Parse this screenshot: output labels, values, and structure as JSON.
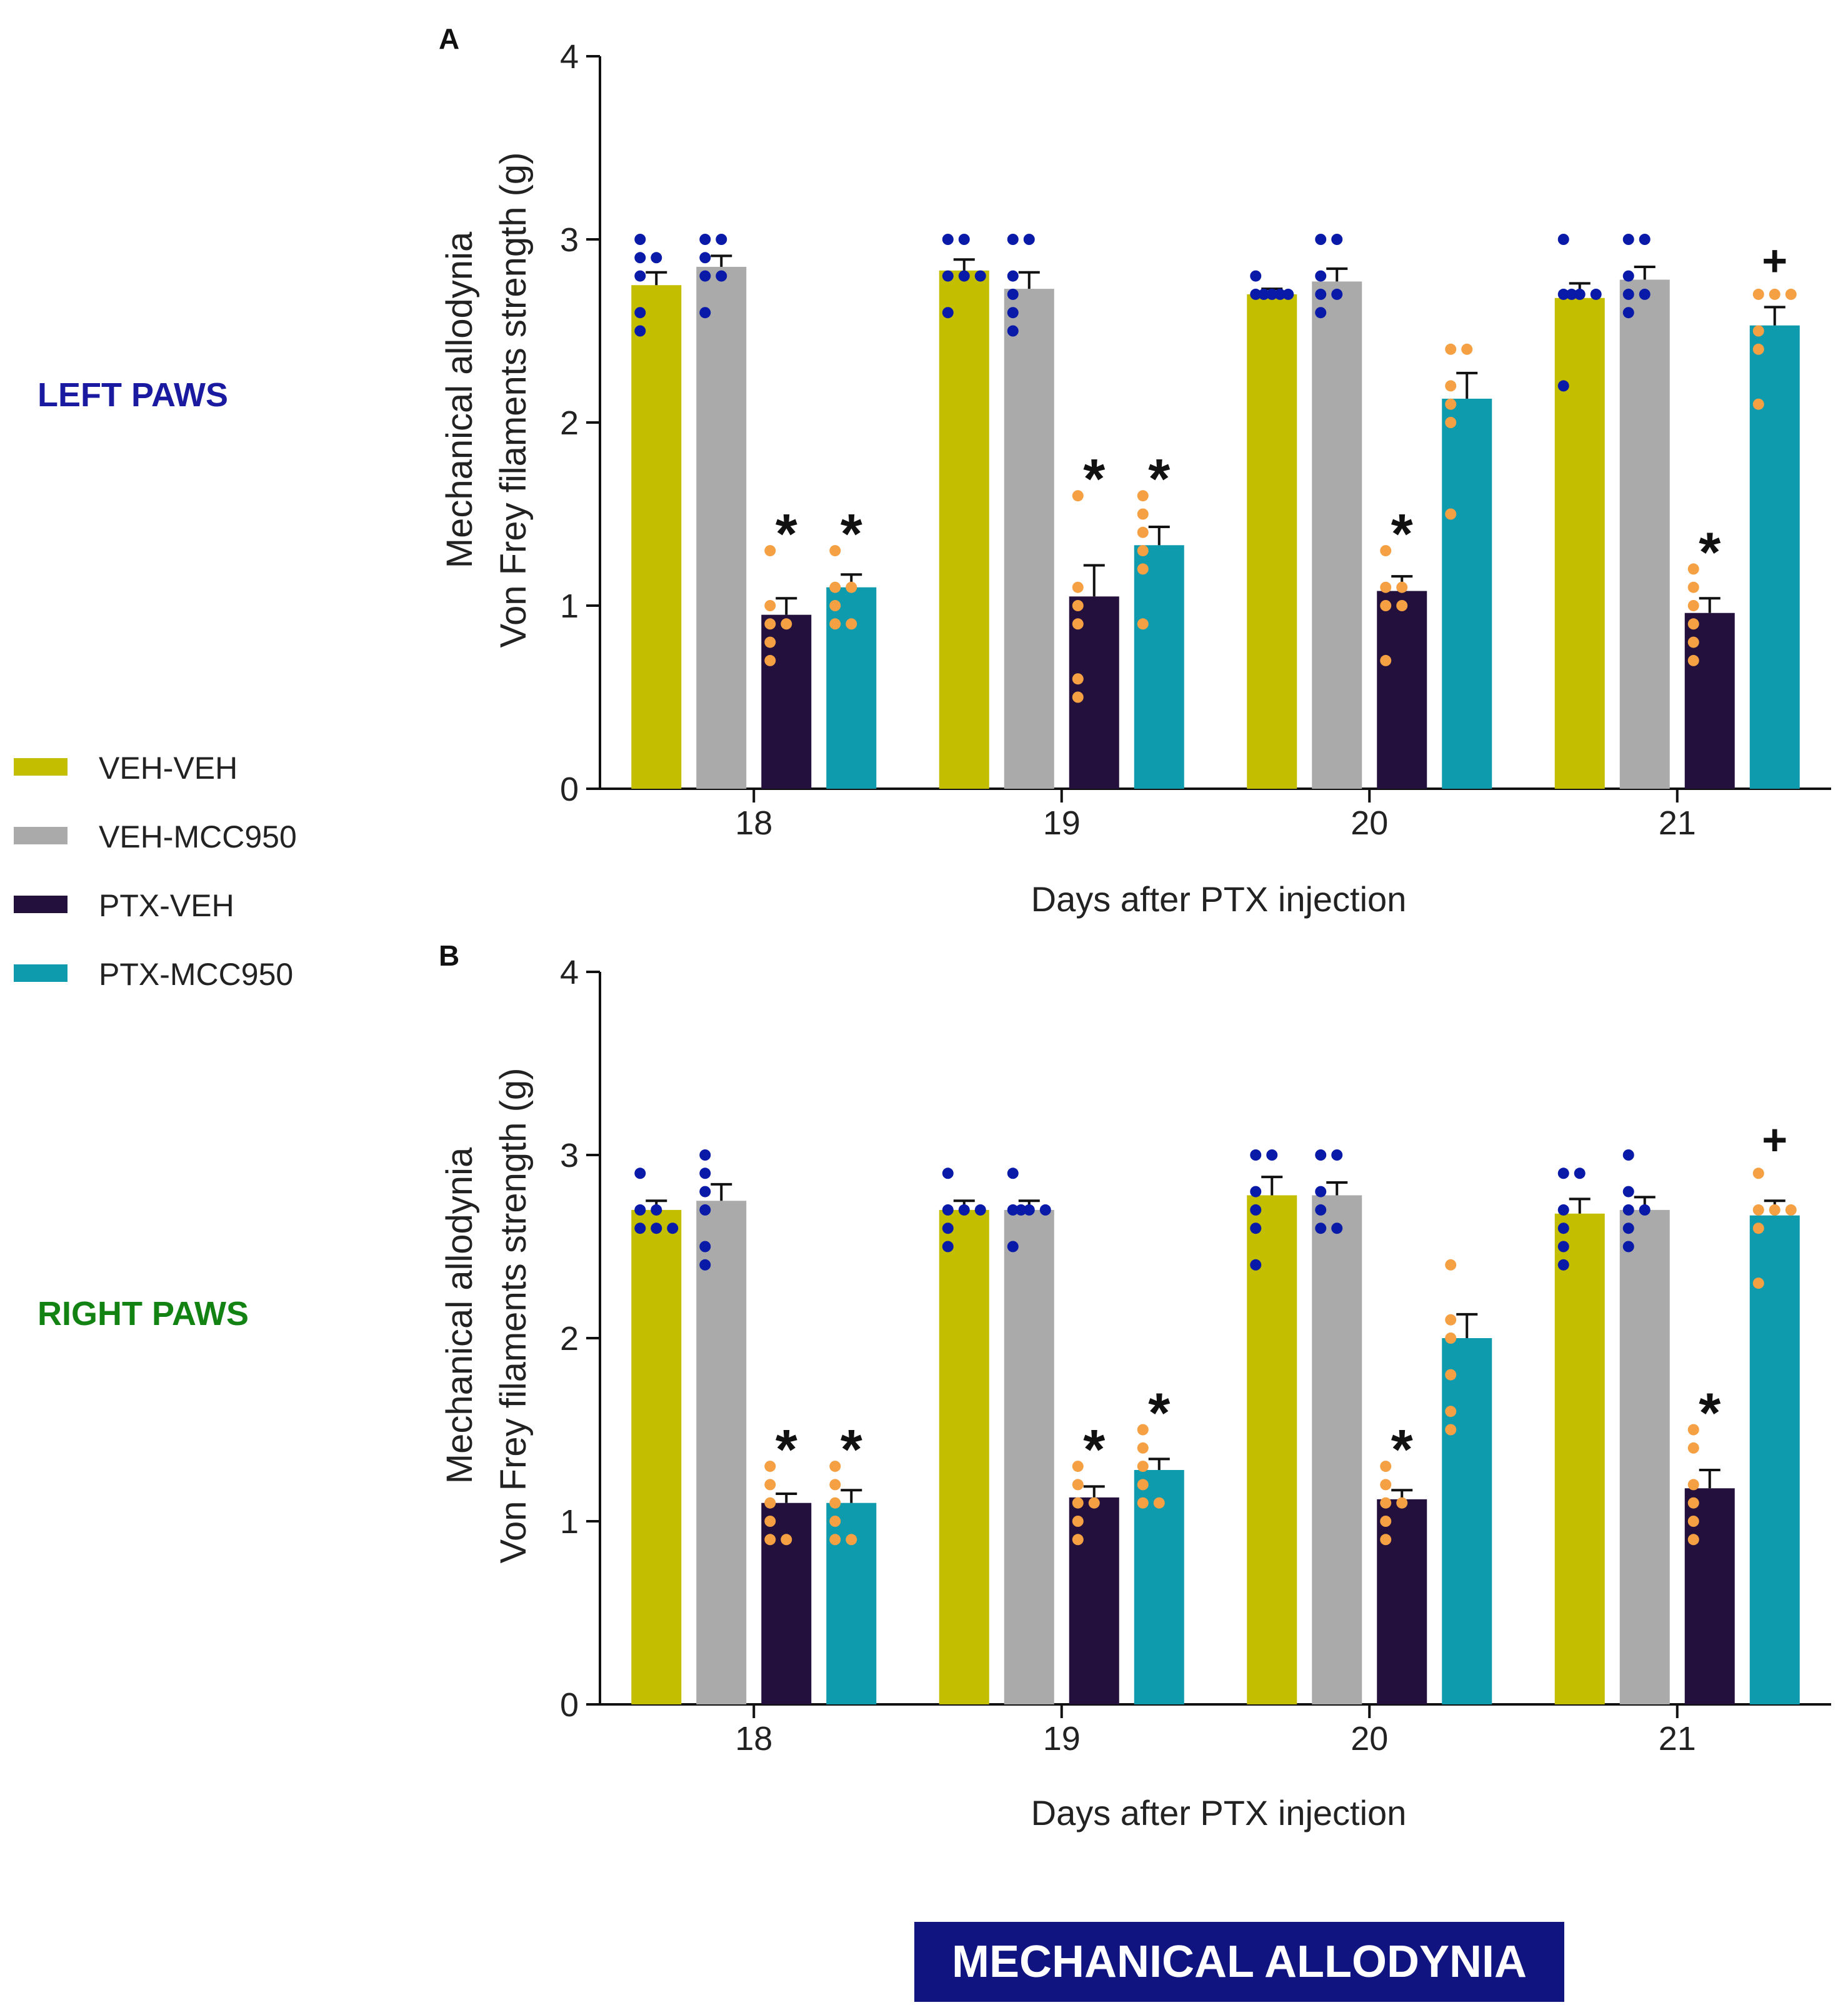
{
  "side_labels": {
    "left": {
      "text": "LEFT PAWS",
      "color": "#1a1aa0"
    },
    "right": {
      "text": "RIGHT PAWS",
      "color": "#128212"
    }
  },
  "legend": [
    {
      "label": "VEH-VEH",
      "color": "#c3be00"
    },
    {
      "label": "VEH-MCC950",
      "color": "#aaaaaa"
    },
    {
      "label": "PTX-VEH",
      "color": "#23103d"
    },
    {
      "label": "PTX-MCC950",
      "color": "#0e9bae"
    }
  ],
  "banner": {
    "text": "MECHANICAL ALLODYNIA",
    "background": "#0f1480",
    "color": "#ffffff"
  },
  "point_colors": {
    "veh": "#0a1aa8",
    "ptx": "#f4a043"
  },
  "chart_data": [
    {
      "panel": "A",
      "type": "bar",
      "xlabel": "Days after PTX injection",
      "ylabel": [
        "Mechanical allodynia",
        "Von Frey filaments strength (g)"
      ],
      "ylim": [
        0,
        4
      ],
      "yticks": [
        0,
        1,
        2,
        3,
        4
      ],
      "categories": [
        "18",
        "19",
        "20",
        "21"
      ],
      "series": [
        {
          "name": "VEH-VEH",
          "values": [
            2.75,
            2.83,
            2.7,
            2.68
          ],
          "sem": [
            0.07,
            0.06,
            0.03,
            0.08
          ],
          "points": [
            [
              3.0,
              2.9,
              2.9,
              2.8,
              2.6,
              2.5
            ],
            [
              3.0,
              3.0,
              2.8,
              2.8,
              2.8,
              2.6
            ],
            [
              2.8,
              2.7,
              2.7,
              2.7,
              2.7,
              2.7
            ],
            [
              3.0,
              2.7,
              2.7,
              2.7,
              2.7,
              2.2
            ]
          ],
          "markers": [
            "",
            "",
            "",
            ""
          ]
        },
        {
          "name": "VEH-MCC950",
          "values": [
            2.85,
            2.73,
            2.77,
            2.78
          ],
          "sem": [
            0.06,
            0.09,
            0.07,
            0.07
          ],
          "points": [
            [
              3.0,
              3.0,
              2.9,
              2.8,
              2.8,
              2.6
            ],
            [
              3.0,
              3.0,
              2.8,
              2.7,
              2.6,
              2.5
            ],
            [
              3.0,
              3.0,
              2.8,
              2.7,
              2.7,
              2.6
            ],
            [
              3.0,
              3.0,
              2.8,
              2.7,
              2.7,
              2.6
            ]
          ],
          "markers": [
            "",
            "",
            "",
            ""
          ]
        },
        {
          "name": "PTX-VEH",
          "values": [
            0.95,
            1.05,
            1.08,
            0.96
          ],
          "sem": [
            0.09,
            0.17,
            0.08,
            0.08
          ],
          "points": [
            [
              1.3,
              1.0,
              0.9,
              0.9,
              0.8,
              0.7
            ],
            [
              1.6,
              1.1,
              1.0,
              0.9,
              0.6,
              0.5
            ],
            [
              1.3,
              1.1,
              1.1,
              1.0,
              1.0,
              0.7
            ],
            [
              1.2,
              1.1,
              1.0,
              0.9,
              0.8,
              0.7
            ]
          ],
          "markers": [
            "*",
            "*",
            "*",
            "*"
          ]
        },
        {
          "name": "PTX-MCC950",
          "values": [
            1.1,
            1.33,
            2.13,
            2.53
          ],
          "sem": [
            0.07,
            0.1,
            0.14,
            0.1
          ],
          "points": [
            [
              1.3,
              1.1,
              1.1,
              1.0,
              0.9,
              0.9
            ],
            [
              1.6,
              1.5,
              1.4,
              1.3,
              1.2,
              0.9
            ],
            [
              2.4,
              2.4,
              2.2,
              2.1,
              2.0,
              1.5
            ],
            [
              2.7,
              2.7,
              2.7,
              2.5,
              2.4,
              2.1
            ]
          ],
          "markers": [
            "*",
            "*",
            "",
            "+"
          ]
        }
      ]
    },
    {
      "panel": "B",
      "type": "bar",
      "xlabel": "Days after PTX injection",
      "ylabel": [
        "Mechanical allodynia",
        "Von Frey filaments strength (g)"
      ],
      "ylim": [
        0,
        4
      ],
      "yticks": [
        0,
        1,
        2,
        3,
        4
      ],
      "categories": [
        "18",
        "19",
        "20",
        "21"
      ],
      "series": [
        {
          "name": "VEH-VEH",
          "values": [
            2.7,
            2.7,
            2.78,
            2.68
          ],
          "sem": [
            0.05,
            0.05,
            0.1,
            0.08
          ],
          "points": [
            [
              2.9,
              2.7,
              2.7,
              2.6,
              2.6,
              2.6
            ],
            [
              2.9,
              2.7,
              2.7,
              2.7,
              2.6,
              2.5
            ],
            [
              3.0,
              3.0,
              2.8,
              2.7,
              2.6,
              2.4
            ],
            [
              2.9,
              2.9,
              2.7,
              2.6,
              2.5,
              2.4
            ]
          ],
          "markers": [
            "",
            "",
            "",
            ""
          ]
        },
        {
          "name": "VEH-MCC950",
          "values": [
            2.75,
            2.7,
            2.78,
            2.7
          ],
          "sem": [
            0.09,
            0.05,
            0.07,
            0.07
          ],
          "points": [
            [
              3.0,
              2.9,
              2.8,
              2.7,
              2.5,
              2.4
            ],
            [
              2.9,
              2.7,
              2.7,
              2.7,
              2.7,
              2.5
            ],
            [
              3.0,
              3.0,
              2.8,
              2.7,
              2.6,
              2.6
            ],
            [
              3.0,
              2.8,
              2.7,
              2.7,
              2.6,
              2.5
            ]
          ],
          "markers": [
            "",
            "",
            "",
            ""
          ]
        },
        {
          "name": "PTX-VEH",
          "values": [
            1.1,
            1.13,
            1.12,
            1.18
          ],
          "sem": [
            0.05,
            0.06,
            0.05,
            0.1
          ],
          "points": [
            [
              1.3,
              1.2,
              1.1,
              1.0,
              0.9,
              0.9
            ],
            [
              1.3,
              1.2,
              1.1,
              1.1,
              1.0,
              0.9
            ],
            [
              1.3,
              1.2,
              1.1,
              1.1,
              1.0,
              0.9
            ],
            [
              1.5,
              1.4,
              1.2,
              1.1,
              1.0,
              0.9
            ]
          ],
          "markers": [
            "*",
            "*",
            "*",
            "*"
          ]
        },
        {
          "name": "PTX-MCC950",
          "values": [
            1.1,
            1.28,
            2.0,
            2.67
          ],
          "sem": [
            0.07,
            0.06,
            0.13,
            0.08
          ],
          "points": [
            [
              1.3,
              1.2,
              1.1,
              1.0,
              0.9,
              0.9
            ],
            [
              1.5,
              1.4,
              1.3,
              1.2,
              1.1,
              1.1
            ],
            [
              2.4,
              2.1,
              2.0,
              1.8,
              1.6,
              1.5
            ],
            [
              2.9,
              2.7,
              2.7,
              2.7,
              2.6,
              2.3
            ]
          ],
          "markers": [
            "*",
            "*",
            "",
            "+"
          ]
        }
      ]
    }
  ]
}
